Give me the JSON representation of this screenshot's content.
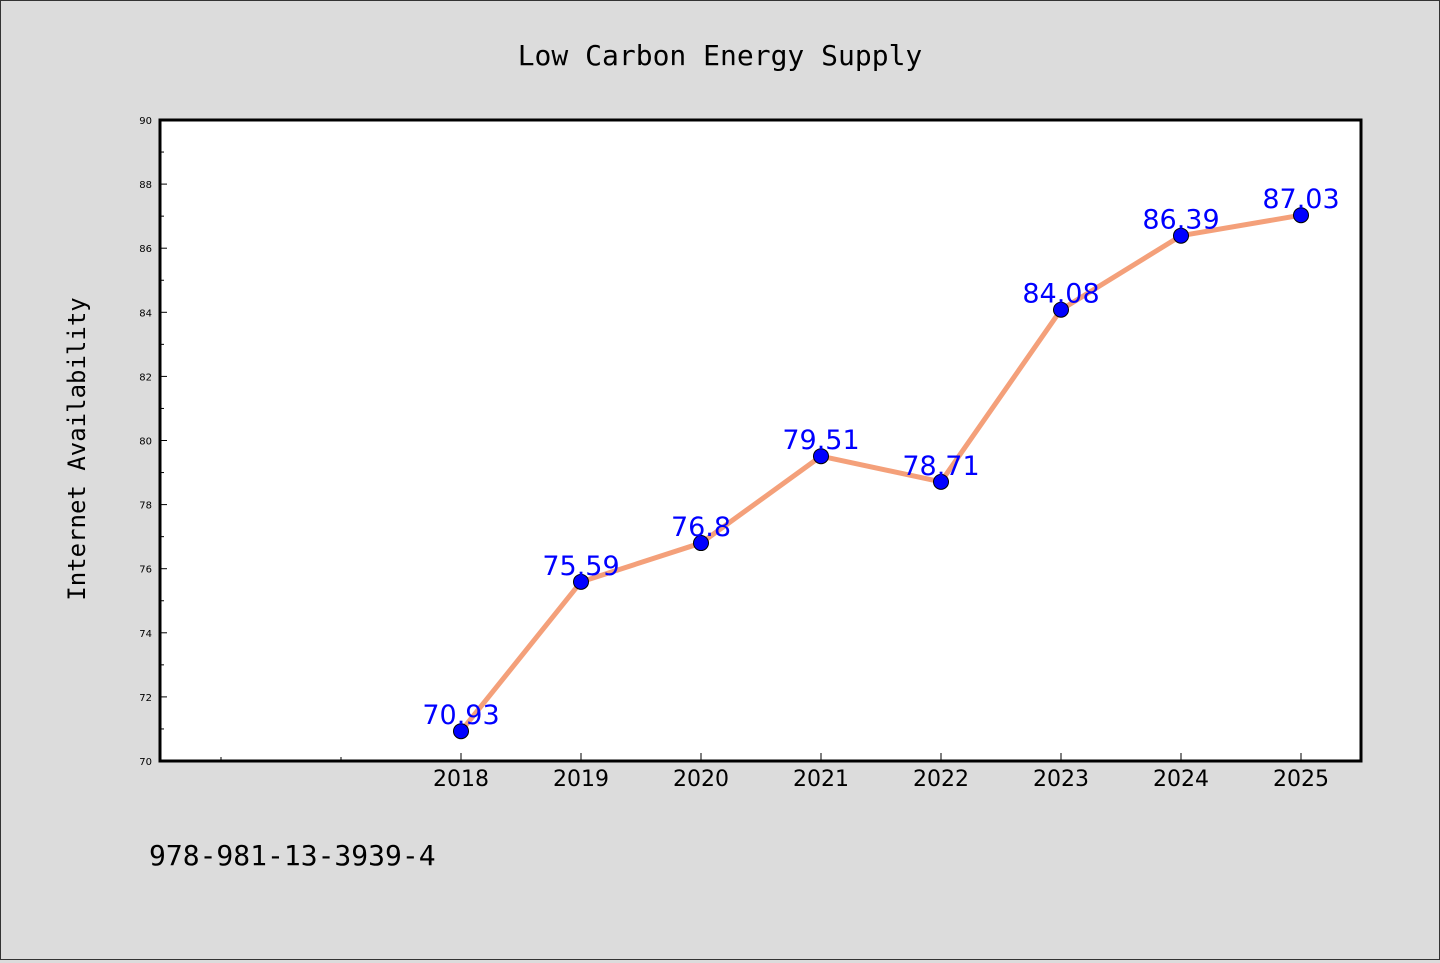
{
  "title": "Low Carbon Energy Supply",
  "footer_text": "978-981-13-3939-4",
  "colors": {
    "background": "#dcdcdc",
    "plot_background": "#ffffff",
    "line": "#f4a07a",
    "marker": "#0000ff",
    "data_label": "#0000ff",
    "text": "#000000"
  },
  "chart_data": {
    "type": "line",
    "title": "Low Carbon Energy Supply",
    "xlabel": "",
    "ylabel": "Internet Availability",
    "x": [
      "2018",
      "2019",
      "2020",
      "2021",
      "2022",
      "2023",
      "2024",
      "2025"
    ],
    "series": [
      {
        "values": [
          70.93,
          75.59,
          76.8,
          79.51,
          78.71,
          84.08,
          86.39,
          87.03
        ]
      }
    ],
    "data_labels": [
      "70.93",
      "75.59",
      "76.8",
      "79.51",
      "78.71",
      "84.08",
      "86.39",
      "87.03"
    ],
    "ylim": [
      70,
      90
    ],
    "yticks": [
      70,
      72,
      74,
      76,
      78,
      80,
      82,
      84,
      86,
      88,
      90
    ],
    "grid": false,
    "legend": "none"
  }
}
